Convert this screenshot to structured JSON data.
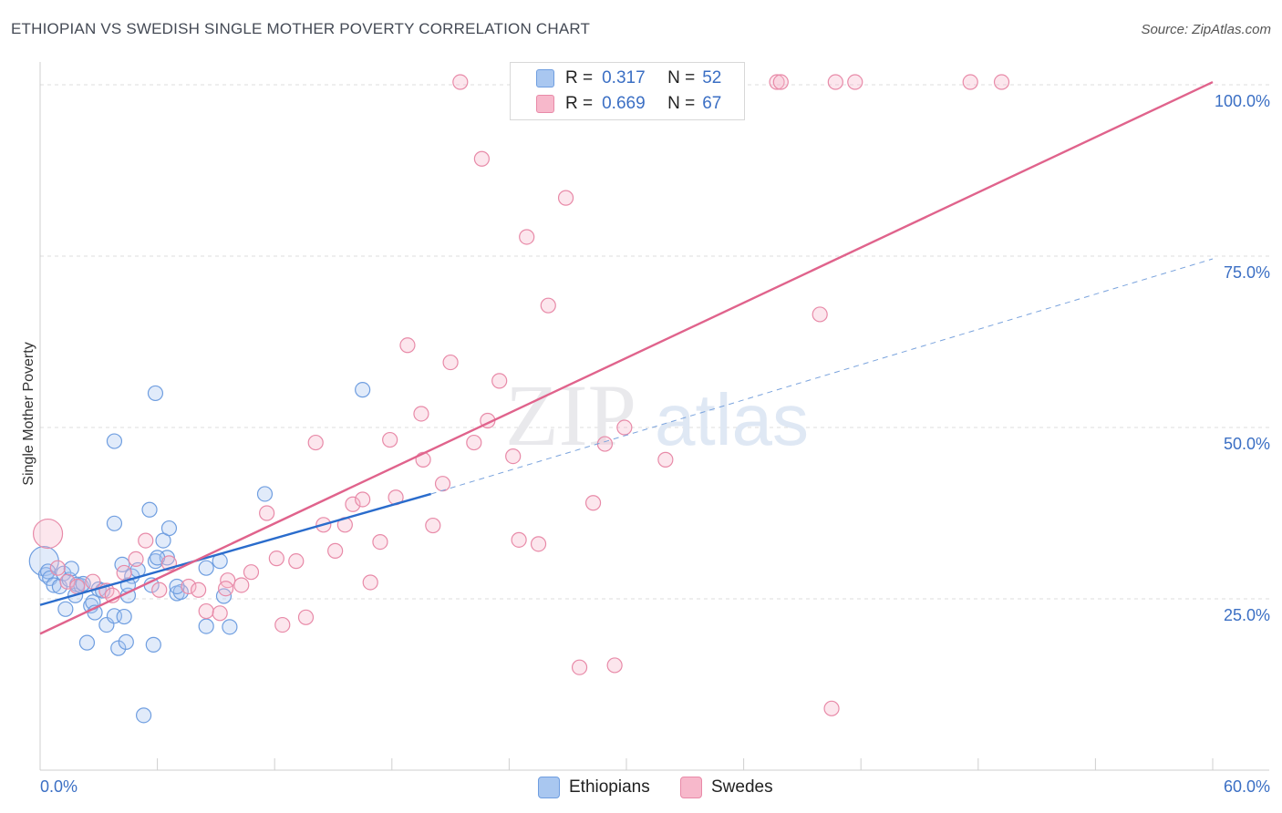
{
  "title": "ETHIOPIAN VS SWEDISH SINGLE MOTHER POVERTY CORRELATION CHART",
  "source": "Source: ZipAtlas.com",
  "watermark": {
    "zip": "ZIP",
    "atlas": "atlas"
  },
  "legend_top": [
    {
      "r_label": "R =",
      "r_value": "0.317",
      "n_label": "N =",
      "n_value": "52",
      "swatch": "#a9c7f0",
      "swatch_border": "#6f9ee0"
    },
    {
      "r_label": "R =",
      "r_value": "0.669",
      "n_label": "N =",
      "n_value": "67",
      "swatch": "#f7b8cb",
      "swatch_border": "#e88aa8"
    }
  ],
  "legend_bottom": [
    {
      "label": "Ethiopians",
      "swatch": "#a9c7f0",
      "swatch_border": "#6f9ee0"
    },
    {
      "label": "Swedes",
      "swatch": "#f7b8cb",
      "swatch_border": "#e88aa8"
    }
  ],
  "chart_data": {
    "type": "scatter",
    "ylabel": "Single Mother Poverty",
    "xlim": [
      0,
      60
    ],
    "ylim": [
      0,
      102
    ],
    "x_tick_labels": [
      {
        "value": 0,
        "label": "0.0%"
      },
      {
        "value": 60,
        "label": "60.0%"
      }
    ],
    "y_tick_labels": [
      {
        "value": 25,
        "label": "25.0%"
      },
      {
        "value": 50,
        "label": "50.0%"
      },
      {
        "value": 75,
        "label": "75.0%"
      },
      {
        "value": 100,
        "label": "100.0%"
      }
    ],
    "colors": {
      "ethiopians": "#6f9ee0",
      "ethiopians_line": "#2a6ccc",
      "swedes": "#e88aa8",
      "swedes_line": "#e0638c",
      "tick_label": "#3b6fc4"
    },
    "series": [
      {
        "name": "Ethiopians",
        "points": [
          [
            0.2,
            30.5
          ],
          [
            0.3,
            28.5
          ],
          [
            0.4,
            29
          ],
          [
            0.5,
            28
          ],
          [
            0.7,
            27
          ],
          [
            1.0,
            26.8
          ],
          [
            1.2,
            28.7
          ],
          [
            1.3,
            23.5
          ],
          [
            1.5,
            27.8
          ],
          [
            1.6,
            29.4
          ],
          [
            1.8,
            25.5
          ],
          [
            1.9,
            27.1
          ],
          [
            2.1,
            26.9
          ],
          [
            2.2,
            27.2
          ],
          [
            2.4,
            18.6
          ],
          [
            2.6,
            24
          ],
          [
            2.7,
            24.5
          ],
          [
            2.8,
            23
          ],
          [
            3.0,
            26.4
          ],
          [
            3.2,
            26.2
          ],
          [
            3.4,
            21.2
          ],
          [
            3.8,
            22.5
          ],
          [
            4.0,
            17.8
          ],
          [
            4.2,
            30
          ],
          [
            4.3,
            22.4
          ],
          [
            4.4,
            18.7
          ],
          [
            4.5,
            25.5
          ],
          [
            4.7,
            28.3
          ],
          [
            5.0,
            29.2
          ],
          [
            5.3,
            8
          ],
          [
            5.7,
            27
          ],
          [
            5.8,
            18.3
          ],
          [
            5.9,
            30.5
          ],
          [
            6.3,
            33.5
          ],
          [
            6.5,
            31
          ],
          [
            6.6,
            35.3
          ],
          [
            7.0,
            25.8
          ],
          [
            7.2,
            26
          ],
          [
            8.5,
            21
          ],
          [
            9.2,
            30.5
          ],
          [
            9.4,
            25.4
          ],
          [
            9.7,
            20.9
          ],
          [
            16.5,
            55.5
          ],
          [
            11.5,
            40.3
          ],
          [
            5.9,
            55
          ],
          [
            3.8,
            48
          ],
          [
            3.8,
            36
          ],
          [
            5.6,
            38
          ],
          [
            7.0,
            26.8
          ],
          [
            8.5,
            29.5
          ],
          [
            6.0,
            31
          ],
          [
            4.5,
            27
          ]
        ]
      },
      {
        "name": "Swedes",
        "points": [
          [
            0.4,
            34.5
          ],
          [
            0.9,
            29.5
          ],
          [
            1.4,
            27.5
          ],
          [
            1.9,
            26.8
          ],
          [
            2.7,
            27.5
          ],
          [
            3.4,
            26.2
          ],
          [
            3.7,
            25.5
          ],
          [
            4.3,
            28.8
          ],
          [
            4.9,
            30.8
          ],
          [
            5.4,
            33.5
          ],
          [
            6.1,
            26.3
          ],
          [
            6.6,
            30.2
          ],
          [
            7.6,
            26.8
          ],
          [
            8.1,
            26.3
          ],
          [
            8.5,
            23.2
          ],
          [
            9.2,
            22.9
          ],
          [
            9.6,
            27.7
          ],
          [
            10.3,
            27
          ],
          [
            10.8,
            28.9
          ],
          [
            11.6,
            37.5
          ],
          [
            12.1,
            30.9
          ],
          [
            12.4,
            21.2
          ],
          [
            13.1,
            30.5
          ],
          [
            13.6,
            22.3
          ],
          [
            14.1,
            47.8
          ],
          [
            14.5,
            35.8
          ],
          [
            15.1,
            32
          ],
          [
            15.6,
            35.8
          ],
          [
            16.0,
            38.8
          ],
          [
            16.5,
            39.5
          ],
          [
            16.9,
            27.4
          ],
          [
            17.4,
            33.3
          ],
          [
            17.9,
            48.2
          ],
          [
            18.2,
            39.8
          ],
          [
            18.8,
            62
          ],
          [
            19.6,
            45.3
          ],
          [
            20.1,
            35.7
          ],
          [
            20.6,
            41.8
          ],
          [
            21.0,
            59.5
          ],
          [
            21.5,
            100.4
          ],
          [
            22.2,
            47.8
          ],
          [
            22.6,
            89.2
          ],
          [
            22.9,
            51
          ],
          [
            23.5,
            56.8
          ],
          [
            24.2,
            45.8
          ],
          [
            24.5,
            33.6
          ],
          [
            24.9,
            77.8
          ],
          [
            25.5,
            33
          ],
          [
            26.0,
            67.8
          ],
          [
            26.9,
            83.5
          ],
          [
            27.6,
            15
          ],
          [
            28.3,
            39
          ],
          [
            28.9,
            47.6
          ],
          [
            29.4,
            15.3
          ],
          [
            29.9,
            50
          ],
          [
            31.2,
            100.4
          ],
          [
            32.0,
            45.3
          ],
          [
            37.7,
            100.4
          ],
          [
            37.9,
            100.4
          ],
          [
            40.7,
            100.4
          ],
          [
            41.7,
            100.4
          ],
          [
            49.2,
            100.4
          ],
          [
            47.6,
            100.4
          ],
          [
            40.5,
            9
          ],
          [
            39.9,
            66.5
          ],
          [
            9.5,
            26.5
          ],
          [
            19.5,
            52
          ]
        ]
      }
    ],
    "trend_lines": [
      {
        "series": "Ethiopians",
        "from": [
          0,
          24.1
        ],
        "to": [
          20,
          40.3
        ],
        "style": "solid"
      },
      {
        "series": "Ethiopians",
        "from": [
          20,
          40.3
        ],
        "to": [
          60,
          74.6
        ],
        "style": "dashed"
      },
      {
        "series": "Swedes",
        "from": [
          0,
          19.9
        ],
        "to": [
          60,
          100.4
        ],
        "style": "solid"
      }
    ]
  }
}
